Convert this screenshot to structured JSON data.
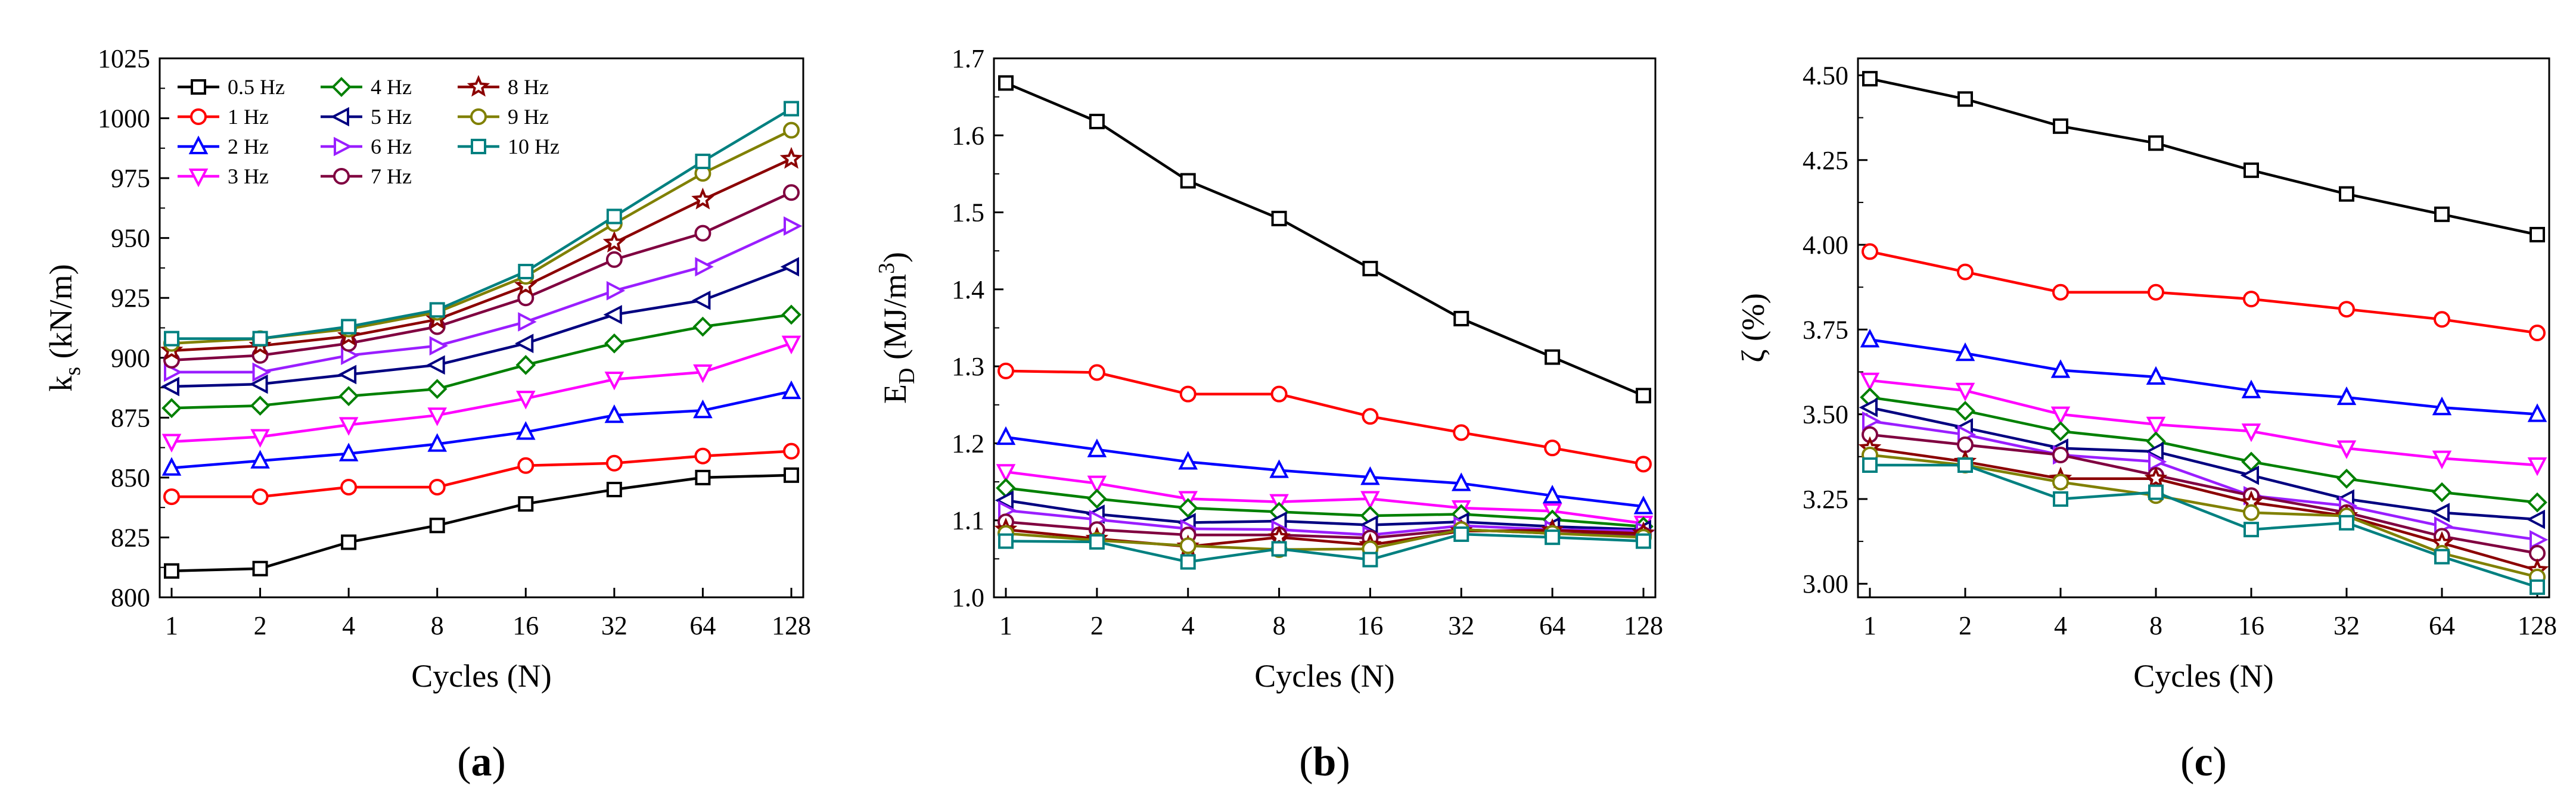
{
  "figure": {
    "xticks": [
      "1",
      "2",
      "4",
      "8",
      "16",
      "32",
      "64",
      "128"
    ],
    "xlabel": "Cycles (N)",
    "series_names": [
      "0.5 Hz",
      "1 Hz",
      "2 Hz",
      "3 Hz",
      "4 Hz",
      "5 Hz",
      "6 Hz",
      "7 Hz",
      "8 Hz",
      "9 Hz",
      "10 Hz"
    ],
    "series_colors": [
      "#000000",
      "#ff0000",
      "#0000ff",
      "#ff00ff",
      "#008000",
      "#000080",
      "#9a1eff",
      "#800040",
      "#8b0000",
      "#808000",
      "#008080"
    ],
    "series_markers": [
      "square",
      "circle",
      "triangle-up",
      "triangle-down",
      "diamond",
      "triangle-left",
      "triangle-right",
      "circle",
      "star",
      "circle",
      "square"
    ]
  },
  "chart_data": [
    {
      "type": "line",
      "panel": "(a)",
      "panel_letter": "a",
      "ylabel_main": "k",
      "ylabel_sub": "s",
      "ylabel_rest": " (kN/m)",
      "xlabel": "Cycles (N)",
      "categories": [
        "1",
        "2",
        "4",
        "8",
        "16",
        "32",
        "64",
        "128"
      ],
      "ylim": [
        800,
        1025
      ],
      "yticks": [
        "800",
        "825",
        "850",
        "875",
        "900",
        "925",
        "950",
        "975",
        "1000",
        "1025"
      ],
      "legend": "top-left",
      "series": [
        {
          "name": "0.5 Hz",
          "values": [
            811,
            812,
            823,
            830,
            839,
            845,
            850,
            851
          ]
        },
        {
          "name": "1 Hz",
          "values": [
            842,
            842,
            846,
            846,
            855,
            856,
            859,
            861
          ]
        },
        {
          "name": "2 Hz",
          "values": [
            854,
            857,
            860,
            864,
            869,
            876,
            878,
            886
          ]
        },
        {
          "name": "3 Hz",
          "values": [
            865,
            867,
            872,
            876,
            883,
            891,
            894,
            906
          ]
        },
        {
          "name": "4 Hz",
          "values": [
            879,
            880,
            884,
            887,
            897,
            906,
            913,
            918
          ]
        },
        {
          "name": "5 Hz",
          "values": [
            888,
            889,
            893,
            897,
            906,
            918,
            924,
            938
          ]
        },
        {
          "name": "6 Hz",
          "values": [
            894,
            894,
            901,
            905,
            915,
            928,
            938,
            955
          ]
        },
        {
          "name": "7 Hz",
          "values": [
            899,
            901,
            906,
            913,
            925,
            941,
            952,
            969
          ]
        },
        {
          "name": "8 Hz",
          "values": [
            903,
            905,
            909,
            916,
            930,
            948,
            966,
            983
          ]
        },
        {
          "name": "9 Hz",
          "values": [
            906,
            908,
            912,
            919,
            934,
            956,
            977,
            995
          ]
        },
        {
          "name": "10 Hz",
          "values": [
            908,
            908,
            913,
            920,
            936,
            959,
            982,
            1004
          ]
        }
      ]
    },
    {
      "type": "line",
      "panel": "(b)",
      "panel_letter": "b",
      "ylabel_main": "E",
      "ylabel_sub": "D",
      "ylabel_rest": " (MJ/m",
      "ylabel_sup": "3",
      "ylabel_end": ")",
      "xlabel": "Cycles (N)",
      "categories": [
        "1",
        "2",
        "4",
        "8",
        "16",
        "32",
        "64",
        "128"
      ],
      "ylim": [
        1.0,
        1.7
      ],
      "yticks": [
        "1.0",
        "1.1",
        "1.2",
        "1.3",
        "1.4",
        "1.5",
        "1.6",
        "1.7"
      ],
      "series": [
        {
          "name": "0.5 Hz",
          "values": [
            1.668,
            1.618,
            1.541,
            1.492,
            1.427,
            1.362,
            1.312,
            1.262
          ]
        },
        {
          "name": "1 Hz",
          "values": [
            1.294,
            1.292,
            1.264,
            1.264,
            1.235,
            1.214,
            1.194,
            1.173
          ]
        },
        {
          "name": "2 Hz",
          "values": [
            1.208,
            1.192,
            1.176,
            1.165,
            1.156,
            1.148,
            1.132,
            1.118
          ]
        },
        {
          "name": "3 Hz",
          "values": [
            1.163,
            1.148,
            1.128,
            1.124,
            1.128,
            1.116,
            1.112,
            1.096
          ]
        },
        {
          "name": "4 Hz",
          "values": [
            1.142,
            1.128,
            1.116,
            1.111,
            1.106,
            1.108,
            1.101,
            1.092
          ]
        },
        {
          "name": "5 Hz",
          "values": [
            1.126,
            1.108,
            1.097,
            1.099,
            1.094,
            1.098,
            1.092,
            1.088
          ]
        },
        {
          "name": "6 Hz",
          "values": [
            1.113,
            1.101,
            1.089,
            1.088,
            1.081,
            1.093,
            1.088,
            1.086
          ]
        },
        {
          "name": "7 Hz",
          "values": [
            1.098,
            1.088,
            1.081,
            1.081,
            1.077,
            1.088,
            1.083,
            1.081
          ]
        },
        {
          "name": "8 Hz",
          "values": [
            1.088,
            1.076,
            1.066,
            1.078,
            1.068,
            1.086,
            1.087,
            1.083
          ]
        },
        {
          "name": "9 Hz",
          "values": [
            1.083,
            1.074,
            1.067,
            1.062,
            1.063,
            1.088,
            1.083,
            1.078
          ]
        },
        {
          "name": "10 Hz",
          "values": [
            1.073,
            1.072,
            1.046,
            1.063,
            1.049,
            1.082,
            1.078,
            1.073
          ]
        }
      ]
    },
    {
      "type": "line",
      "panel": "(c)",
      "panel_letter": "c",
      "ylabel_main": "ζ",
      "ylabel_rest": " (%)",
      "xlabel": "Cycles (N)",
      "categories": [
        "1",
        "2",
        "4",
        "8",
        "16",
        "32",
        "64",
        "128"
      ],
      "ylim": [
        2.96,
        4.55
      ],
      "yticks": [
        "3.00",
        "3.25",
        "3.50",
        "3.75",
        "4.00",
        "4.25",
        "4.50"
      ],
      "ytick_values": [
        3.0,
        3.25,
        3.5,
        3.75,
        4.0,
        4.25,
        4.5
      ],
      "series": [
        {
          "name": "0.5 Hz",
          "values": [
            4.49,
            4.43,
            4.35,
            4.3,
            4.22,
            4.15,
            4.09,
            4.03
          ]
        },
        {
          "name": "1 Hz",
          "values": [
            3.98,
            3.92,
            3.86,
            3.86,
            3.84,
            3.81,
            3.78,
            3.74
          ]
        },
        {
          "name": "2 Hz",
          "values": [
            3.72,
            3.68,
            3.63,
            3.61,
            3.57,
            3.55,
            3.52,
            3.5
          ]
        },
        {
          "name": "3 Hz",
          "values": [
            3.6,
            3.57,
            3.5,
            3.47,
            3.45,
            3.4,
            3.37,
            3.35
          ]
        },
        {
          "name": "4 Hz",
          "values": [
            3.55,
            3.51,
            3.45,
            3.42,
            3.36,
            3.31,
            3.27,
            3.24
          ]
        },
        {
          "name": "5 Hz",
          "values": [
            3.52,
            3.46,
            3.4,
            3.39,
            3.32,
            3.25,
            3.21,
            3.19
          ]
        },
        {
          "name": "6 Hz",
          "values": [
            3.48,
            3.44,
            3.38,
            3.36,
            3.26,
            3.23,
            3.17,
            3.13
          ]
        },
        {
          "name": "7 Hz",
          "values": [
            3.44,
            3.41,
            3.38,
            3.32,
            3.26,
            3.21,
            3.14,
            3.09
          ]
        },
        {
          "name": "8 Hz",
          "values": [
            3.4,
            3.36,
            3.31,
            3.31,
            3.24,
            3.2,
            3.12,
            3.04
          ]
        },
        {
          "name": "9 Hz",
          "values": [
            3.38,
            3.35,
            3.3,
            3.26,
            3.21,
            3.2,
            3.09,
            3.02
          ]
        },
        {
          "name": "10 Hz",
          "values": [
            3.35,
            3.35,
            3.25,
            3.27,
            3.16,
            3.18,
            3.08,
            2.99
          ]
        }
      ]
    }
  ]
}
